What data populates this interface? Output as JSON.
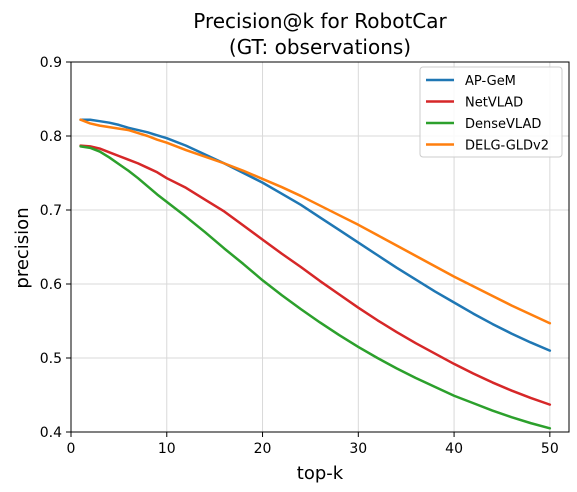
{
  "chart_data": {
    "type": "line",
    "title": "Precision@k for RobotCar",
    "subtitle": "(GT: observations)",
    "xlabel": "top-k",
    "ylabel": "precision",
    "xlim": [
      0,
      52
    ],
    "ylim": [
      0.4,
      0.9
    ],
    "xticks": [
      0,
      10,
      20,
      30,
      40,
      50
    ],
    "yticks": [
      0.4,
      0.5,
      0.6,
      0.7,
      0.8,
      0.9
    ],
    "xtick_labels": [
      "0",
      "10",
      "20",
      "30",
      "40",
      "50"
    ],
    "ytick_labels": [
      "0.4",
      "0.5",
      "0.6",
      "0.7",
      "0.8",
      "0.9"
    ],
    "grid": true,
    "legend_position": "top-right",
    "x": [
      1,
      2,
      3,
      4,
      5,
      6,
      7,
      8,
      9,
      10,
      12,
      14,
      16,
      18,
      20,
      22,
      24,
      26,
      28,
      30,
      32,
      34,
      36,
      38,
      40,
      42,
      44,
      46,
      48,
      50
    ],
    "series": [
      {
        "name": "AP-GeM",
        "color": "#1f77b4",
        "values": [
          0.822,
          0.822,
          0.82,
          0.818,
          0.815,
          0.811,
          0.808,
          0.805,
          0.801,
          0.797,
          0.787,
          0.775,
          0.763,
          0.75,
          0.737,
          0.722,
          0.707,
          0.69,
          0.673,
          0.656,
          0.639,
          0.622,
          0.606,
          0.59,
          0.575,
          0.56,
          0.546,
          0.533,
          0.521,
          0.51
        ]
      },
      {
        "name": "NetVLAD",
        "color": "#d62728",
        "values": [
          0.787,
          0.786,
          0.783,
          0.778,
          0.773,
          0.768,
          0.763,
          0.757,
          0.751,
          0.743,
          0.73,
          0.714,
          0.698,
          0.679,
          0.66,
          0.641,
          0.623,
          0.604,
          0.586,
          0.568,
          0.551,
          0.535,
          0.52,
          0.506,
          0.492,
          0.479,
          0.467,
          0.456,
          0.446,
          0.437
        ]
      },
      {
        "name": "DenseVLAD",
        "color": "#2ca02c",
        "values": [
          0.786,
          0.784,
          0.779,
          0.771,
          0.762,
          0.753,
          0.743,
          0.732,
          0.721,
          0.711,
          0.691,
          0.67,
          0.648,
          0.627,
          0.605,
          0.585,
          0.566,
          0.548,
          0.531,
          0.515,
          0.5,
          0.486,
          0.473,
          0.461,
          0.449,
          0.439,
          0.429,
          0.42,
          0.412,
          0.405
        ]
      },
      {
        "name": "DELG-GLDv2",
        "color": "#ff7f0e",
        "values": [
          0.822,
          0.817,
          0.814,
          0.812,
          0.81,
          0.808,
          0.804,
          0.8,
          0.795,
          0.791,
          0.781,
          0.772,
          0.763,
          0.753,
          0.742,
          0.731,
          0.719,
          0.706,
          0.693,
          0.68,
          0.666,
          0.652,
          0.638,
          0.624,
          0.61,
          0.597,
          0.584,
          0.571,
          0.559,
          0.547
        ]
      }
    ]
  }
}
